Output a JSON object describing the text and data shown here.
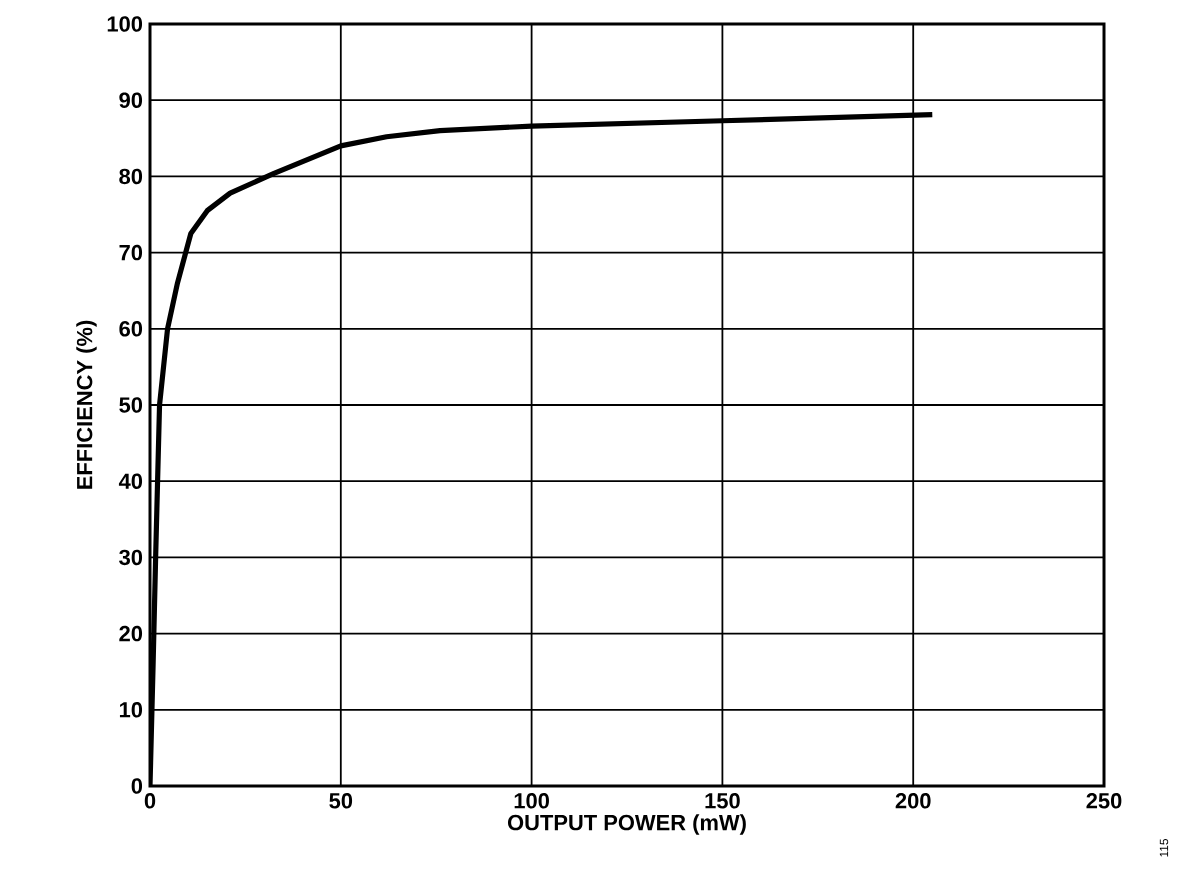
{
  "chart_data": {
    "type": "line",
    "xlabel": "OUTPUT POWER (mW)",
    "ylabel": "EFFICIENCY (%)",
    "xlim": [
      0,
      250
    ],
    "xticks": [
      0,
      50,
      100,
      150,
      200,
      250
    ],
    "ylim": [
      0,
      100
    ],
    "yticks": [
      0,
      10,
      20,
      30,
      40,
      50,
      60,
      70,
      80,
      90,
      100
    ],
    "grid": true,
    "series": [
      {
        "color": "#000000",
        "x": [
          0,
          0.8,
          1.5,
          2.5,
          4.6,
          7.2,
          10.7,
          15,
          21,
          32.5,
          50,
          62,
          76,
          100,
          150,
          205
        ],
        "values": [
          0,
          15.7,
          30.5,
          50,
          60,
          66,
          72.5,
          75.5,
          77.8,
          80.4,
          84,
          85.2,
          86,
          86.6,
          87.3,
          88.1
        ]
      }
    ],
    "annotations": [
      "115"
    ]
  }
}
